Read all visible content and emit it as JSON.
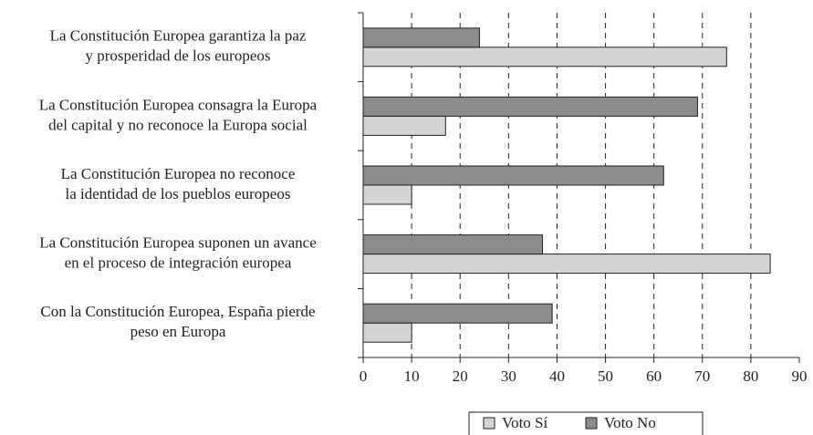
{
  "chart_data": {
    "type": "barh",
    "categories": [
      [
        "La Constitución Europea garantiza la paz",
        "y prosperidad de los europeos"
      ],
      [
        "La Constitución Europea consagra la Europa",
        "del capital y no reconoce la Europa social"
      ],
      [
        "La Constitución Europea no reconoce",
        "la identidad de los pueblos europeos"
      ],
      [
        "La Constitución Europea suponen un avance",
        "en el proceso de integración europea"
      ],
      [
        "Con la Constitución Europea, España pierde",
        "peso en Europa"
      ]
    ],
    "series": [
      {
        "name": "Voto Sí",
        "color": "#d4d4d4",
        "values": [
          75,
          17,
          10,
          84,
          10
        ]
      },
      {
        "name": "Voto No",
        "color": "#8c8c8c",
        "values": [
          24,
          69,
          62,
          37,
          39
        ]
      }
    ],
    "xlim": [
      0,
      90
    ],
    "xticks": [
      0,
      10,
      20,
      30,
      40,
      50,
      60,
      70,
      80,
      90
    ],
    "grid": true,
    "legend": "bottom"
  }
}
